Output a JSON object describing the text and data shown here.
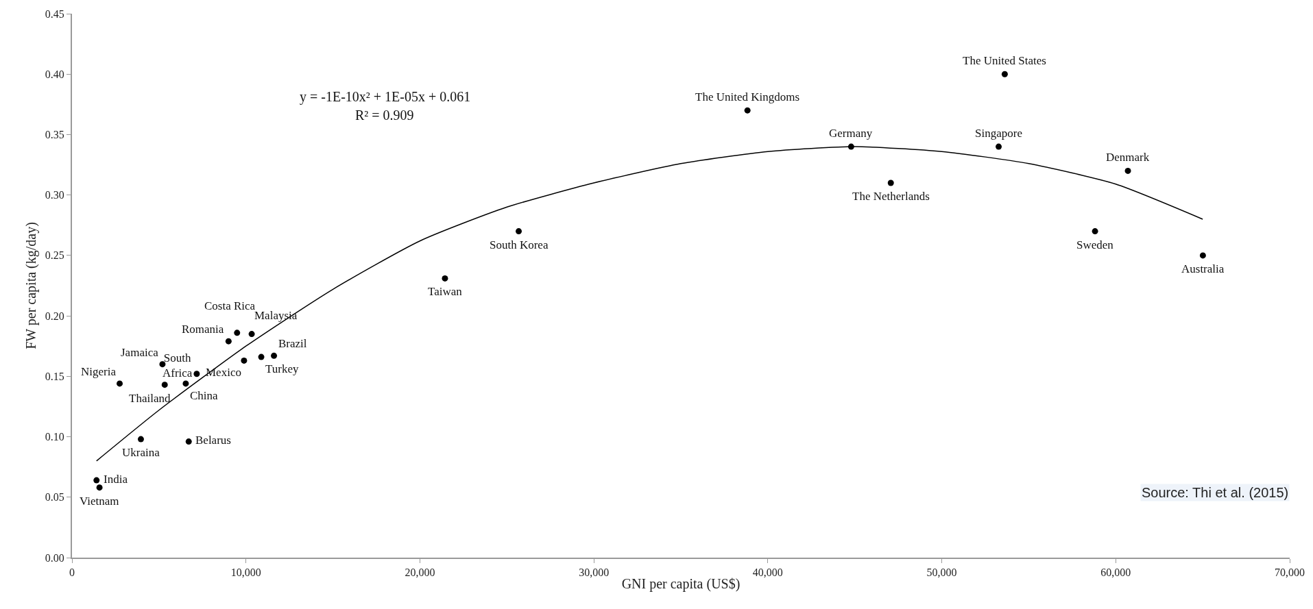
{
  "chart_data": {
    "type": "scatter",
    "xlabel": "GNI per capita (US$)",
    "ylabel": "FW per capita (kg/day)",
    "xlim": [
      0,
      70000
    ],
    "ylim": [
      0,
      0.45
    ],
    "xticks": [
      0,
      {
        "value": 10000,
        "label": "10,000"
      },
      {
        "value": 20000,
        "label": "20,000"
      },
      {
        "value": 30000,
        "label": "30,000"
      },
      {
        "value": 40000,
        "label": "40,000"
      },
      {
        "value": 50000,
        "label": "50,000"
      },
      {
        "value": 60000,
        "label": "60,000"
      },
      {
        "value": 70000,
        "label": "70,000"
      }
    ],
    "yticks": [
      {
        "value": 0,
        "label": "0.00"
      },
      {
        "value": 0.05,
        "label": "0.05"
      },
      {
        "value": 0.1,
        "label": "0.10"
      },
      {
        "value": 0.15,
        "label": "0.15"
      },
      {
        "value": 0.2,
        "label": "0.20"
      },
      {
        "value": 0.25,
        "label": "0.25"
      },
      {
        "value": 0.3,
        "label": "0.30"
      },
      {
        "value": 0.35,
        "label": "0.35"
      },
      {
        "value": 0.4,
        "label": "0.40"
      },
      {
        "value": 0.45,
        "label": "0.45"
      }
    ],
    "marker": "circle",
    "series": [
      {
        "color": "#000000",
        "x": [
          1580,
          1410,
          3960,
          6710,
          2740,
          5200,
          5330,
          6540,
          7170,
          9890,
          9000,
          9490,
          10330,
          10880,
          11610,
          21440,
          25680,
          38830,
          44790,
          47070,
          53620,
          53270,
          60700,
          58810,
          65010
        ],
        "values": [
          0.058,
          0.064,
          0.098,
          0.096,
          0.144,
          0.16,
          0.143,
          0.144,
          0.152,
          0.163,
          0.179,
          0.186,
          0.185,
          0.166,
          0.167,
          0.231,
          0.27,
          0.37,
          0.34,
          0.31,
          0.4,
          0.34,
          0.32,
          0.27,
          0.25
        ]
      },
      {
        "type": "line",
        "color": "#000000",
        "marker": "none",
        "x": [
          1410,
          5000,
          10000,
          15000,
          20000,
          25000,
          30000,
          35000,
          40000,
          45000,
          50000,
          55000,
          60000,
          65000
        ],
        "values": [
          0.08,
          0.122,
          0.175,
          0.222,
          0.262,
          0.29,
          0.31,
          0.326,
          0.336,
          0.34,
          0.336,
          0.326,
          0.309,
          0.28
        ]
      }
    ],
    "annotations": [
      "y = -1E-10x² + 1E-05x + 0.061",
      "R² = 0.909",
      "Source: Thi et al. (2015)",
      {
        "text": "Vietnam",
        "x": 1580,
        "y": 0.058
      },
      {
        "text": "India",
        "x": 1410,
        "y": 0.064
      },
      {
        "text": "Ukraina",
        "x": 3960,
        "y": 0.098
      },
      {
        "text": "Belarus",
        "x": 6710,
        "y": 0.096
      },
      {
        "text": "Nigeria",
        "x": 2740,
        "y": 0.144
      },
      {
        "text": "Jamaica",
        "x": 5200,
        "y": 0.16
      },
      {
        "text": "Thailand",
        "x": 5330,
        "y": 0.143
      },
      {
        "text": "China",
        "x": 6540,
        "y": 0.144
      },
      {
        "text": "South Africa",
        "x": 7170,
        "y": 0.152
      },
      {
        "text": "Mexico",
        "x": 9890,
        "y": 0.163
      },
      {
        "text": "Romania",
        "x": 9000,
        "y": 0.179
      },
      {
        "text": "Costa Rica",
        "x": 9490,
        "y": 0.186
      },
      {
        "text": "Malaysia",
        "x": 10330,
        "y": 0.185
      },
      {
        "text": "Turkey",
        "x": 10880,
        "y": 0.166
      },
      {
        "text": "Brazil",
        "x": 11610,
        "y": 0.167
      },
      {
        "text": "Taiwan",
        "x": 21440,
        "y": 0.231
      },
      {
        "text": "South Korea",
        "x": 25680,
        "y": 0.27
      },
      {
        "text": "The United Kingdoms",
        "x": 38830,
        "y": 0.37
      },
      {
        "text": "Germany",
        "x": 44790,
        "y": 0.34
      },
      {
        "text": "The Netherlands",
        "x": 47070,
        "y": 0.31
      },
      {
        "text": "The United States",
        "x": 53620,
        "y": 0.4
      },
      {
        "text": "Singapore",
        "x": 53270,
        "y": 0.34
      },
      {
        "text": "Denmark",
        "x": 60700,
        "y": 0.32
      },
      {
        "text": "Sweden",
        "x": 58810,
        "y": 0.27
      },
      {
        "text": "Australia",
        "x": 65010,
        "y": 0.25
      }
    ]
  }
}
